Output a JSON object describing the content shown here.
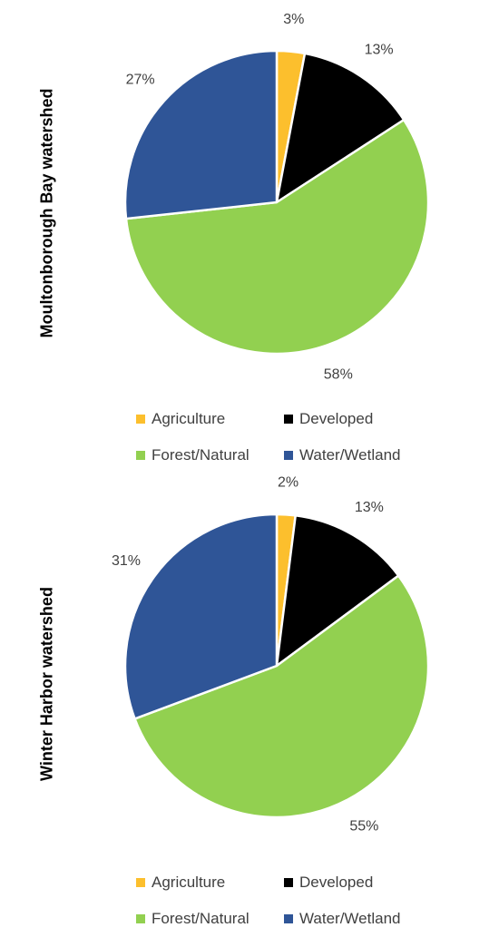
{
  "colors": {
    "agriculture": "#FCBF2D",
    "developed": "#000000",
    "forest": "#92D050",
    "water": "#2F5597"
  },
  "chart_data": [
    {
      "type": "pie",
      "ylabel": "Moultonborough Bay watershed",
      "categories": [
        "Agriculture",
        "Developed",
        "Forest/Natural",
        "Water/Wetland"
      ],
      "values": [
        3,
        13,
        58,
        27
      ],
      "labels": [
        "3%",
        "13%",
        "58%",
        "27%"
      ],
      "colors": [
        "#FCBF2D",
        "#000000",
        "#92D050",
        "#2F5597"
      ],
      "legend": [
        "Agriculture",
        "Developed",
        "Forest/Natural",
        "Water/Wetland"
      ],
      "legend_position": "bottom"
    },
    {
      "type": "pie",
      "ylabel": "Winter Harbor watershed",
      "categories": [
        "Agriculture",
        "Developed",
        "Forest/Natural",
        "Water/Wetland"
      ],
      "values": [
        2,
        13,
        55,
        31
      ],
      "labels": [
        "2%",
        "13%",
        "55%",
        "31%"
      ],
      "colors": [
        "#FCBF2D",
        "#000000",
        "#92D050",
        "#2F5597"
      ],
      "legend": [
        "Agriculture",
        "Developed",
        "Forest/Natural",
        "Water/Wetland"
      ],
      "legend_position": "bottom"
    }
  ]
}
